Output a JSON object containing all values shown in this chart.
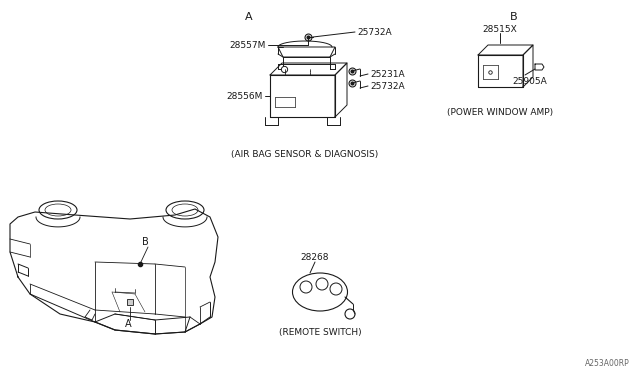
{
  "bg_color": "#FFFFFF",
  "line_color": "#1a1a1a",
  "fig_width": 6.4,
  "fig_height": 3.72,
  "dpi": 100,
  "watermark": "A253A00RP",
  "labels": {
    "car_A": "A",
    "car_B": "B",
    "section_A": "A",
    "section_B": "B",
    "part_28557M": "28557M",
    "part_25732A_top": "25732A",
    "part_25231A": "25231A",
    "part_25732A_bot": "25732A",
    "part_28556M": "28556M",
    "caption_airbag": "(AIR BAG SENSOR & DIAGNOSIS)",
    "part_28515X": "28515X",
    "part_25905A": "25905A",
    "caption_power": "(POWER WINDOW AMP)",
    "part_28268": "28268",
    "caption_remote": "(REMOTE SWITCH)"
  }
}
